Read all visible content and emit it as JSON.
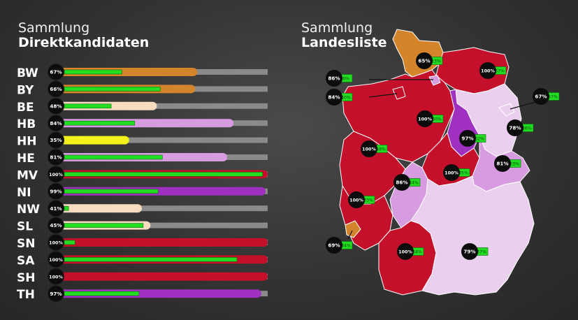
{
  "left_title": {
    "line1": "Sammlung",
    "line2": "Direktkandidaten"
  },
  "right_title": {
    "line1": "Sammlung",
    "line2": "Landesliste"
  },
  "colors": {
    "track": "#8a8a8a",
    "progress": "#22dd22",
    "dark_red": "#c4102a",
    "orange": "#d4842a",
    "purple": "#a030c0",
    "light_purple": "#d79be0",
    "pale_purple": "#ead0ee",
    "peach": "#f7dcc0",
    "yellow": "#f2f21a",
    "map_border": "#ffffff"
  },
  "chart_data": [
    {
      "type": "bar",
      "title": "Sammlung Direktkandidaten",
      "categories": [
        "BW",
        "BY",
        "BE",
        "HB",
        "HH",
        "HE",
        "MV",
        "NI",
        "NW",
        "SL",
        "SN",
        "SA",
        "SH",
        "TH"
      ],
      "series": [
        {
          "values": [
            67,
            66,
            48,
            84,
            35,
            81,
            100,
            99,
            41,
            45,
            100,
            100,
            100,
            97
          ]
        },
        {
          "values": [
            27,
            45,
            22,
            33,
            0,
            46,
            93,
            44,
            2,
            37,
            5,
            81,
            0,
            35
          ]
        }
      ],
      "labels": [
        "67%",
        "66%",
        "48%",
        "84%",
        "35%",
        "81%",
        "100%",
        "99%",
        "41%",
        "45%",
        "100%",
        "100%",
        "100%",
        "97%"
      ],
      "bar_colors": [
        "#d4842a",
        "#d4842a",
        "#f7dcc0",
        "#d79be0",
        "#f2f21a",
        "#d79be0",
        "#c4102a",
        "#a030c0",
        "#f7dcc0",
        "#f7dcc0",
        "#c4102a",
        "#c4102a",
        "#c4102a",
        "#a030c0"
      ],
      "ylim": [
        0,
        100
      ]
    },
    {
      "type": "map",
      "title": "Sammlung Landesliste",
      "regions": [
        {
          "state": "SH",
          "value": 65,
          "label": "65%",
          "secondary_label": "23%",
          "secondary": 23,
          "fill": "#d4842a"
        },
        {
          "state": "MV",
          "value": 100,
          "label": "100%",
          "secondary_label": "67%",
          "secondary": 67,
          "fill": "#c4102a"
        },
        {
          "state": "HH",
          "value": 86,
          "label": "86%",
          "secondary_label": "6%",
          "secondary": 6,
          "fill": "#d79be0"
        },
        {
          "state": "HB",
          "value": 84,
          "label": "84%",
          "secondary_label": "40%",
          "secondary": 40,
          "fill": "#c4102a"
        },
        {
          "state": "BE",
          "value": 67,
          "label": "67%",
          "secondary_label": "57%",
          "secondary": 57,
          "fill": "#ead0ee"
        },
        {
          "state": "NI",
          "value": 100,
          "label": "100%",
          "secondary_label": "80%",
          "secondary": 80,
          "fill": "#c4102a"
        },
        {
          "state": "BB",
          "value": 78,
          "label": "78%",
          "secondary_label": "66%",
          "secondary": 66,
          "fill": "#ead0ee"
        },
        {
          "state": "SA",
          "value": 97,
          "label": "97%",
          "secondary_label": "62%",
          "secondary": 62,
          "fill": "#a030c0"
        },
        {
          "state": "NW",
          "value": 100,
          "label": "100%",
          "secondary_label": "48%",
          "secondary": 48,
          "fill": "#c4102a"
        },
        {
          "state": "SN",
          "value": 81,
          "label": "81%",
          "secondary_label": "23%",
          "secondary": 23,
          "fill": "#d79be0"
        },
        {
          "state": "TH",
          "value": 100,
          "label": "100%",
          "secondary_label": "35%",
          "secondary": 35,
          "fill": "#c4102a"
        },
        {
          "state": "HE",
          "value": 86,
          "label": "86%",
          "secondary_label": "44%",
          "secondary": 44,
          "fill": "#d79be0"
        },
        {
          "state": "RP",
          "value": 100,
          "label": "100%",
          "secondary_label": "33%",
          "secondary": 33,
          "fill": "#c4102a"
        },
        {
          "state": "SL",
          "value": 69,
          "label": "69%",
          "secondary_label": "34%",
          "secondary": 34,
          "fill": "#d4842a"
        },
        {
          "state": "BW",
          "value": 100,
          "label": "100%",
          "secondary_label": "34%",
          "secondary": 34,
          "fill": "#c4102a"
        },
        {
          "state": "BY",
          "value": 79,
          "label": "79%",
          "secondary_label": "37%",
          "secondary": 37,
          "fill": "#ead0ee"
        }
      ]
    }
  ]
}
